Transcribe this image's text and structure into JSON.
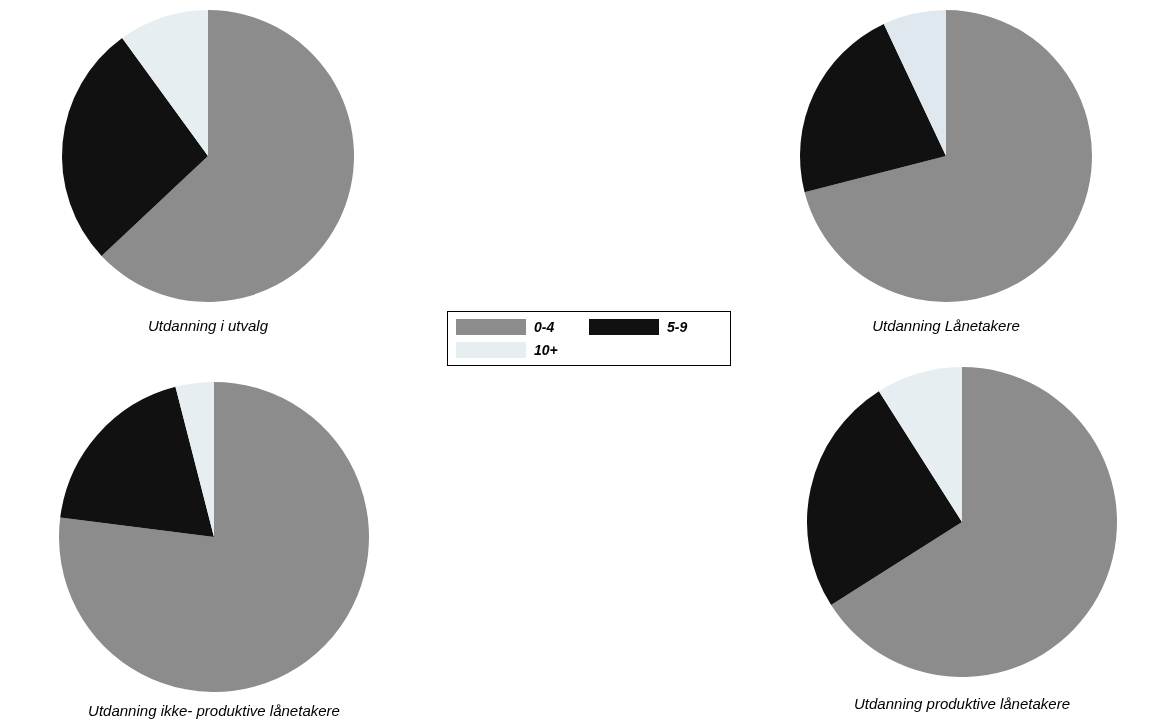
{
  "chart_data": [
    {
      "type": "pie",
      "title": "Utdanning i utvalg",
      "categories": [
        "0-4",
        "5-9",
        "10+"
      ],
      "values": [
        63,
        27,
        10
      ],
      "colors": [
        "#8c8c8c",
        "#111111",
        "#e6eef2"
      ],
      "legend": "right"
    },
    {
      "type": "pie",
      "title": "Utdanning Lånetakere",
      "categories": [
        null,
        null,
        null
      ],
      "values": [
        71,
        22,
        7
      ],
      "colors": [
        "#8c8c8c",
        "#111111",
        "#dfe8ee"
      ]
    },
    {
      "type": "pie",
      "title": "Utdanning ikke- produktive lånetakere",
      "categories": [
        null,
        null,
        null
      ],
      "values": [
        77,
        19,
        4
      ],
      "colors": [
        "#8c8c8c",
        "#111111",
        "#e6eef2"
      ]
    },
    {
      "type": "pie",
      "title": "Utdanning produktive lånetakere",
      "categories": [
        null,
        null,
        null
      ],
      "values": [
        66,
        25,
        9
      ],
      "colors": [
        "#8c8c8c",
        "#111111",
        "#e6eef2"
      ]
    }
  ]
}
